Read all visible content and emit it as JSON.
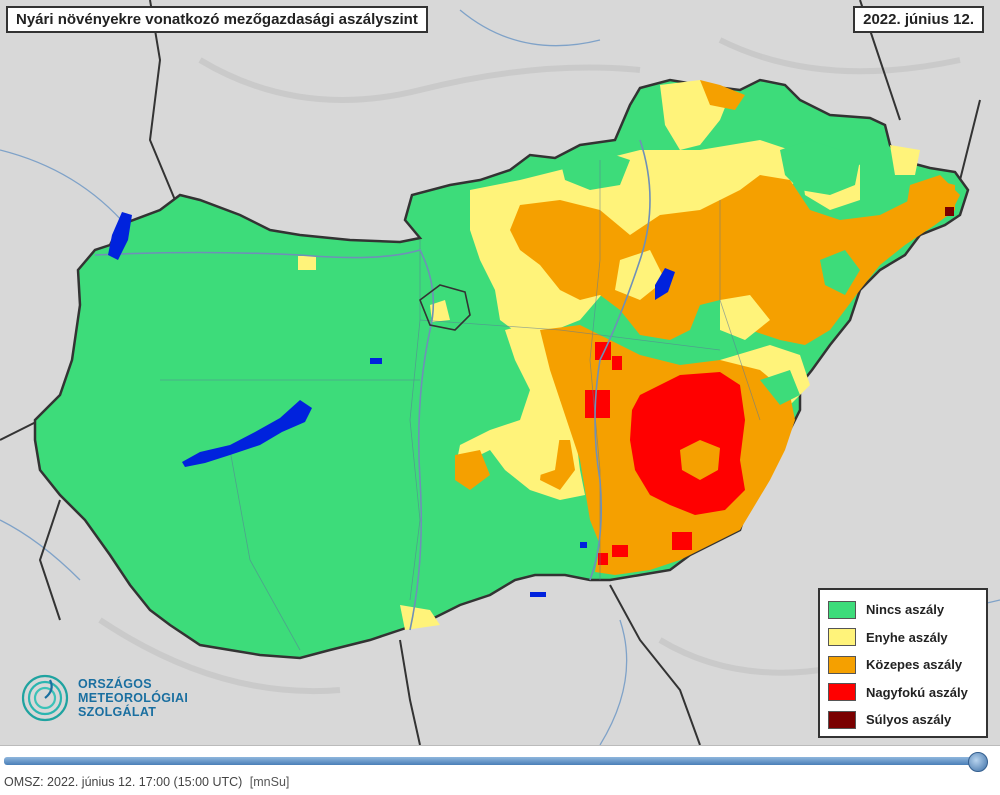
{
  "map": {
    "title": "Nyári növényekre vonatkozó mezőgazdasági aszályszint",
    "date": "2022. június 12."
  },
  "legend": {
    "items": [
      {
        "label": "Nincs aszály",
        "color": "#3ddc7a"
      },
      {
        "label": "Enyhe aszály",
        "color": "#fff37a"
      },
      {
        "label": "Közepes aszály",
        "color": "#f5a000"
      },
      {
        "label": "Nagyfokú aszály",
        "color": "#ff0000"
      },
      {
        "label": "Súlyos aszály",
        "color": "#7a0000"
      }
    ]
  },
  "logo": {
    "line1": "ORSZÁGOS",
    "line2": "METEOROLÓGIAI",
    "line3": "SZOLGÁLAT"
  },
  "footer": {
    "text": "OMSZ: 2022. június 12. 17:00 (15:00  UTC)",
    "param": "[mnSu]"
  },
  "colors": {
    "background": "#d7d7d7",
    "water": "#0022dd",
    "border": "#333333"
  }
}
